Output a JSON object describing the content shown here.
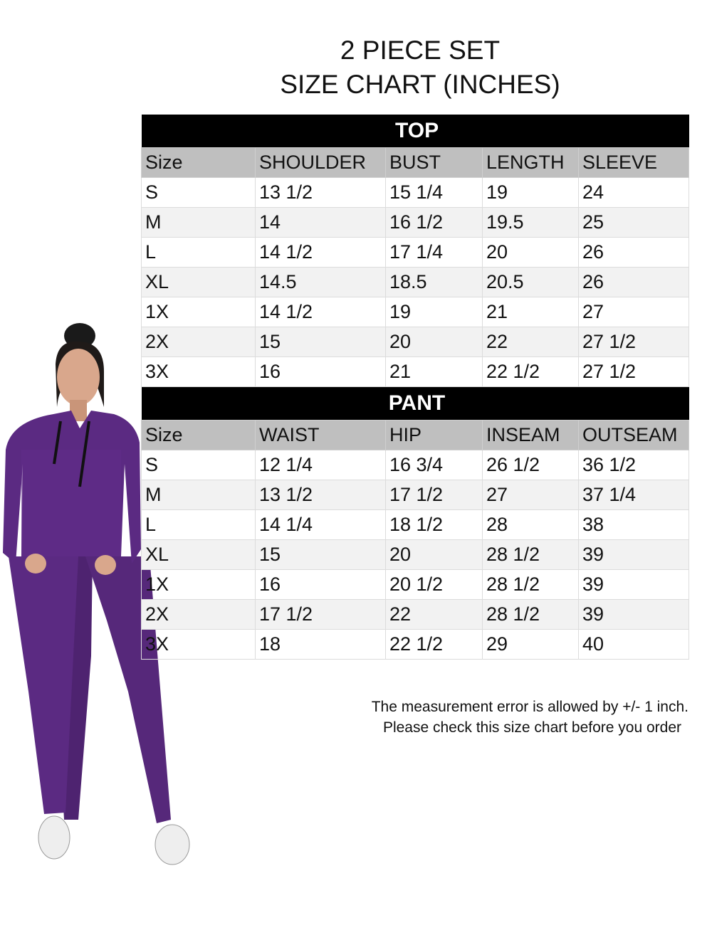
{
  "title_line1": "2 PIECE SET",
  "title_line2": "SIZE CHART (INCHES)",
  "top": {
    "label": "TOP",
    "headers": [
      "Size",
      "SHOULDER",
      "BUST",
      "LENGTH",
      "SLEEVE"
    ],
    "rows": [
      [
        "S",
        "13 1/2",
        "15 1/4",
        "19",
        "24"
      ],
      [
        "M",
        "14",
        "16 1/2",
        "19.5",
        "25"
      ],
      [
        "L",
        "14 1/2",
        "17 1/4",
        "20",
        "26"
      ],
      [
        "XL",
        "14.5",
        "18.5",
        "20.5",
        "26"
      ],
      [
        "1X",
        "14 1/2",
        "19",
        "21",
        "27"
      ],
      [
        "2X",
        "15",
        "20",
        "22",
        "27 1/2"
      ],
      [
        "3X",
        "16",
        "21",
        "22 1/2",
        "27 1/2"
      ]
    ]
  },
  "pant": {
    "label": "PANT",
    "headers": [
      "Size",
      "WAIST",
      "HIP",
      "INSEAM",
      "OUTSEAM"
    ],
    "rows": [
      [
        "S",
        "12 1/4",
        "16 3/4",
        "26 1/2",
        "36 1/2"
      ],
      [
        "M",
        "13 1/2",
        "17 1/2",
        "27",
        "37 1/4"
      ],
      [
        "L",
        "14 1/4",
        "18 1/2",
        "28",
        "38"
      ],
      [
        "XL",
        "15",
        "20",
        "28 1/2",
        "39"
      ],
      [
        "1X",
        "16",
        "20 1/2",
        "28 1/2",
        "39"
      ],
      [
        "2X",
        "17 1/2",
        "22",
        "28 1/2",
        "39"
      ],
      [
        "3X",
        "18",
        "22 1/2",
        "29",
        "40"
      ]
    ]
  },
  "note_line1": "The measurement error is allowed by +/- 1 inch.",
  "note_line2": "Please check this size chart before you order",
  "colors": {
    "section_header": "#000000",
    "column_header": "#bfbfbf",
    "alt_row": "#f2f2f2",
    "garment": "#5b2a82"
  }
}
